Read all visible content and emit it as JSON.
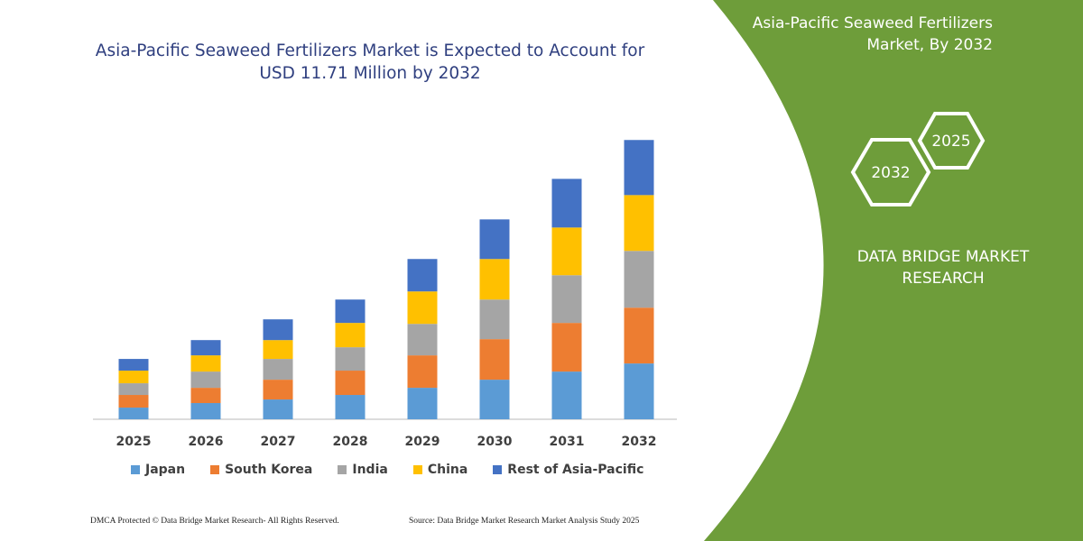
{
  "chart_data": {
    "type": "stacked_bar",
    "title": "Asia-Pacific Seaweed Fertilizers Market is Expected to Account for USD 11.71 Million by 2032",
    "categories": [
      "2025",
      "2026",
      "2027",
      "2028",
      "2029",
      "2030",
      "2031",
      "2032"
    ],
    "series": [
      {
        "name": "Japan",
        "color": "#5b9bd5",
        "values": [
          0.49,
          0.68,
          0.83,
          1.02,
          1.32,
          1.66,
          2.0,
          2.34
        ]
      },
      {
        "name": "South Korea",
        "color": "#ed7d31",
        "values": [
          0.53,
          0.64,
          0.83,
          1.02,
          1.36,
          1.7,
          2.04,
          2.34
        ]
      },
      {
        "name": "India",
        "color": "#a5a5a5",
        "values": [
          0.49,
          0.68,
          0.87,
          0.98,
          1.32,
          1.66,
          2.0,
          2.38
        ]
      },
      {
        "name": "China",
        "color": "#ffc000",
        "values": [
          0.53,
          0.68,
          0.79,
          1.02,
          1.36,
          1.7,
          2.0,
          2.34
        ]
      },
      {
        "name": "Rest of Asia-Pacific",
        "color": "#4472c4",
        "values": [
          0.49,
          0.64,
          0.87,
          0.98,
          1.36,
          1.66,
          2.04,
          2.31
        ]
      }
    ],
    "ylim": [
      0,
      12.4
    ],
    "grid": false,
    "legend": "bottom"
  },
  "panel": {
    "title": "Asia-Pacific Seaweed Fertilizers Market, By 2032",
    "badges": [
      "2032",
      "2025"
    ],
    "brand": "DATA BRIDGE MARKET RESEARCH"
  },
  "footer": {
    "copyright": "DMCA Protected © Data Bridge Market Research- All Rights Reserved.",
    "source": "Source: Data Bridge Market Research  Market Analysis Study 2025"
  }
}
